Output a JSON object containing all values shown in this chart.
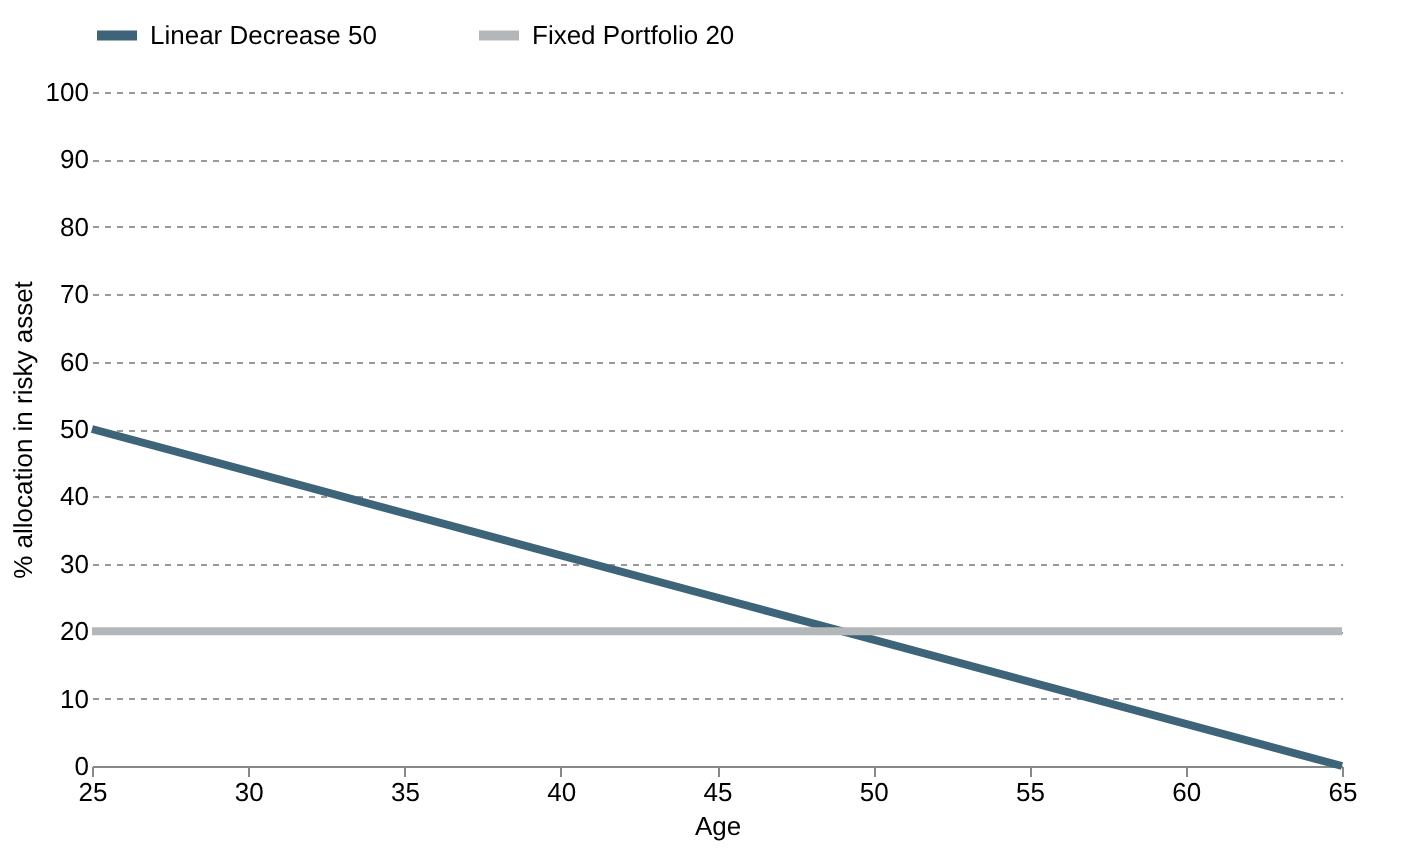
{
  "chart_data": {
    "type": "line",
    "xlabel": "Age",
    "ylabel": "% allocation in risky asset",
    "x": [
      25,
      65
    ],
    "series": [
      {
        "name": "Linear Decrease 50",
        "color": "#3e6479",
        "x": [
          25,
          45,
          65
        ],
        "values": [
          50,
          25,
          0
        ]
      },
      {
        "name": "Fixed Portfolio 20",
        "color": "#b4b7ba",
        "values": [
          20,
          20
        ]
      }
    ],
    "xlim": [
      25,
      65
    ],
    "xticks": [
      25,
      30,
      35,
      40,
      45,
      50,
      55,
      60,
      65
    ],
    "ylim": [
      0,
      100
    ],
    "yticks": [
      0,
      10,
      20,
      30,
      40,
      50,
      60,
      70,
      80,
      90,
      100
    ],
    "grid": "y",
    "legend": "top",
    "marker": "none",
    "line_style": "solid"
  }
}
